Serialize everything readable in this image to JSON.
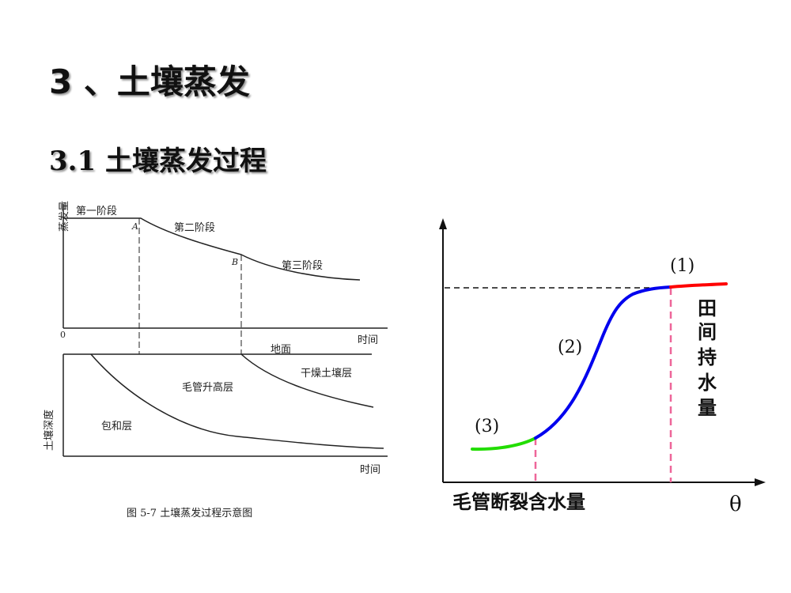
{
  "title": "3 、土壤蒸发",
  "subtitle": "3.1  土壤蒸发过程",
  "left_figure": {
    "top_axis_label": "蒸发量",
    "stage1": "第一阶段",
    "stage2": "第二阶段",
    "stage3": "第三阶段",
    "point_a": "A",
    "point_b": "B",
    "origin": "0",
    "time_label_top": "时间",
    "ground_label": "地面",
    "dry_layer": "干燥土壤层",
    "capillary_layer": "毛管升高层",
    "saturated_layer": "包和层",
    "depth_label": "土壤深度",
    "time_label_bottom": "时间",
    "caption": "图 5-7   土壤蒸发过程示意图"
  },
  "right_figure": {
    "label_1": "(1)",
    "label_2": "(2)",
    "label_3": "(3)",
    "field_capacity": "田间持水量",
    "field_capacity_chars": [
      "田",
      "间",
      "持",
      "水",
      "量"
    ],
    "capillary_break": "毛管断裂含水量",
    "theta": "θ",
    "colors": {
      "segment_1": "#ff0000",
      "segment_2": "#0000ee",
      "segment_3": "#22dd00",
      "marker": "#ee6699"
    }
  }
}
